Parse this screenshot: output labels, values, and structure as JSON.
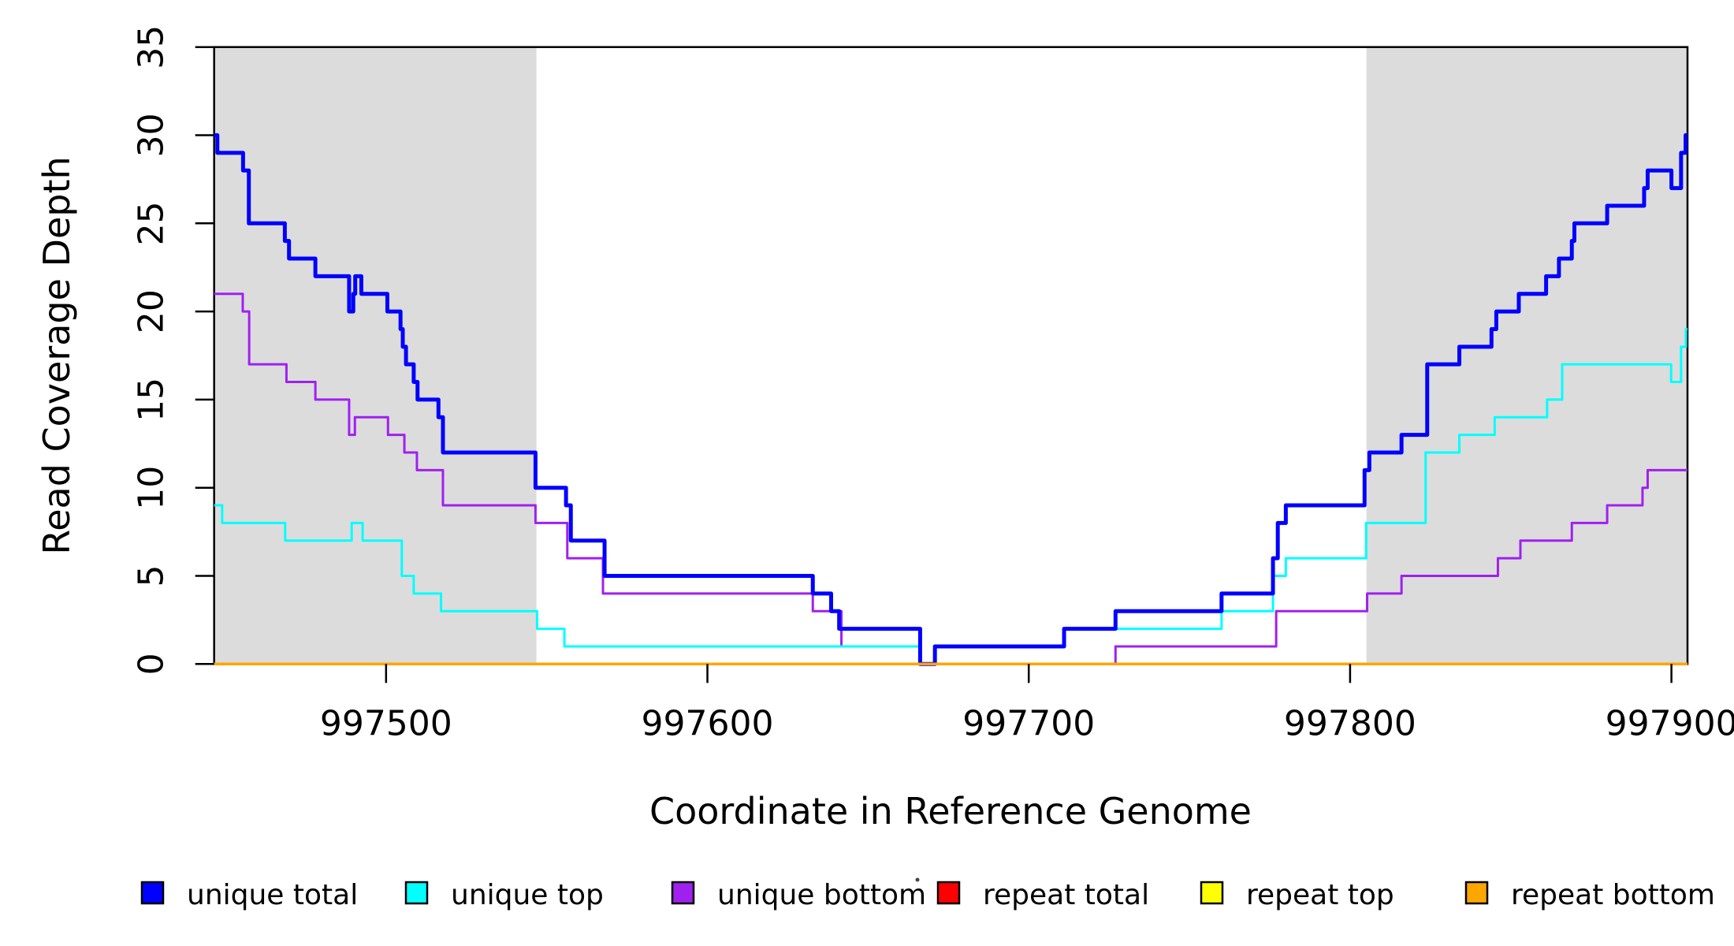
{
  "figure": {
    "xlabel": "Coordinate in Reference Genome",
    "ylabel": "Read Coverage Depth"
  },
  "chart_data": {
    "type": "line",
    "subtype": "step",
    "title": "",
    "xlabel": "Coordinate in Reference Genome",
    "ylabel": "Read Coverage Depth",
    "xlim": [
      997446.5,
      997905
    ],
    "ylim": [
      0,
      35
    ],
    "xticks": [
      997500,
      997600,
      997700,
      997800,
      997900
    ],
    "yticks": [
      0,
      5,
      10,
      15,
      20,
      25,
      30,
      35
    ],
    "grid": false,
    "legend_position": "bottom",
    "shade_color": "#DCDCDC",
    "shaded_regions": [
      {
        "x_start": 997446.5,
        "x_end": 997546.8
      },
      {
        "x_start": 997805.1,
        "x_end": 997905
      }
    ],
    "draw_order": [
      "repeat total",
      "repeat top",
      "unique bottom",
      "unique top",
      "unique total",
      "repeat bottom"
    ],
    "series": [
      {
        "name": "unique total",
        "color": "#0000FF",
        "line_width": 5,
        "steps": [
          [
            997446.5,
            30
          ],
          [
            997447.5,
            29
          ],
          [
            997455.5,
            28
          ],
          [
            997457.3,
            25
          ],
          [
            997468.5,
            24
          ],
          [
            997469.8,
            23
          ],
          [
            997478,
            22
          ],
          [
            997488.5,
            20
          ],
          [
            997489.8,
            21
          ],
          [
            997490.4,
            22
          ],
          [
            997492.3,
            21
          ],
          [
            997500.4,
            20
          ],
          [
            997504.5,
            19
          ],
          [
            997505.2,
            18
          ],
          [
            997506.2,
            17
          ],
          [
            997508.6,
            16
          ],
          [
            997509.8,
            15
          ],
          [
            997516.3,
            14
          ],
          [
            997517.7,
            12
          ],
          [
            997546.5,
            10
          ],
          [
            997556,
            9
          ],
          [
            997557.5,
            7
          ],
          [
            997568,
            5
          ],
          [
            997632.8,
            4
          ],
          [
            997638.5,
            3
          ],
          [
            997641,
            2
          ],
          [
            997666.2,
            0
          ],
          [
            997670.8,
            1
          ],
          [
            997711,
            2
          ],
          [
            997727,
            3
          ],
          [
            997760,
            4
          ],
          [
            997776,
            6
          ],
          [
            997777.5,
            8
          ],
          [
            997780,
            9
          ],
          [
            997804.5,
            11
          ],
          [
            997806,
            12
          ],
          [
            997816,
            13
          ],
          [
            997824,
            17
          ],
          [
            997834,
            18
          ],
          [
            997844,
            19
          ],
          [
            997845.5,
            20
          ],
          [
            997852.5,
            21
          ],
          [
            997861,
            22
          ],
          [
            997865,
            23
          ],
          [
            997869,
            24
          ],
          [
            997869.8,
            25
          ],
          [
            997880,
            26
          ],
          [
            997891.5,
            27
          ],
          [
            997892.6,
            28
          ],
          [
            997900,
            27
          ],
          [
            997903,
            29
          ],
          [
            997904.4,
            30
          ]
        ]
      },
      {
        "name": "unique top",
        "color": "#00FFFF",
        "line_width": 3,
        "steps": [
          [
            997446.5,
            9
          ],
          [
            997449,
            8
          ],
          [
            997468.6,
            7
          ],
          [
            997489.3,
            8
          ],
          [
            997492.7,
            7
          ],
          [
            997504.9,
            5
          ],
          [
            997508.6,
            4
          ],
          [
            997517.1,
            3
          ],
          [
            997547,
            2
          ],
          [
            997555.5,
            1
          ],
          [
            997666.2,
            0
          ],
          [
            997671,
            1
          ],
          [
            997711,
            2
          ],
          [
            997760,
            3
          ],
          [
            997776,
            5
          ],
          [
            997780,
            6
          ],
          [
            997805,
            8
          ],
          [
            997823.5,
            12
          ],
          [
            997834,
            13
          ],
          [
            997845,
            14
          ],
          [
            997861.3,
            15
          ],
          [
            997866,
            17
          ],
          [
            997899.9,
            16
          ],
          [
            997903,
            18
          ],
          [
            997904.5,
            19
          ]
        ]
      },
      {
        "name": "unique bottom",
        "color": "#A020F0",
        "line_width": 3,
        "steps": [
          [
            997446.5,
            21
          ],
          [
            997455.4,
            20
          ],
          [
            997457.4,
            17
          ],
          [
            997469,
            16
          ],
          [
            997478,
            15
          ],
          [
            997488.5,
            13
          ],
          [
            997490.3,
            14
          ],
          [
            997500.6,
            13
          ],
          [
            997505.7,
            12
          ],
          [
            997509.6,
            11
          ],
          [
            997517.7,
            9
          ],
          [
            997546.5,
            8
          ],
          [
            997556.4,
            6
          ],
          [
            997567.5,
            4
          ],
          [
            997632.8,
            3
          ],
          [
            997641.7,
            1
          ],
          [
            997666.2,
            0
          ],
          [
            997727,
            1
          ],
          [
            997777,
            3
          ],
          [
            997805.3,
            4
          ],
          [
            997816,
            5
          ],
          [
            997846,
            6
          ],
          [
            997853,
            7
          ],
          [
            997869,
            8
          ],
          [
            997880,
            9
          ],
          [
            997891,
            10
          ],
          [
            997892.6,
            11
          ]
        ]
      },
      {
        "name": "repeat total",
        "color": "#FF0000",
        "line_width": 3,
        "steps": [
          [
            997446.5,
            0
          ]
        ]
      },
      {
        "name": "repeat top",
        "color": "#FFFF00",
        "line_width": 3,
        "steps": [
          [
            997446.5,
            0
          ]
        ]
      },
      {
        "name": "repeat bottom",
        "color": "#FFA500",
        "line_width": 3.5,
        "steps": [
          [
            997446.5,
            0
          ]
        ]
      }
    ]
  }
}
